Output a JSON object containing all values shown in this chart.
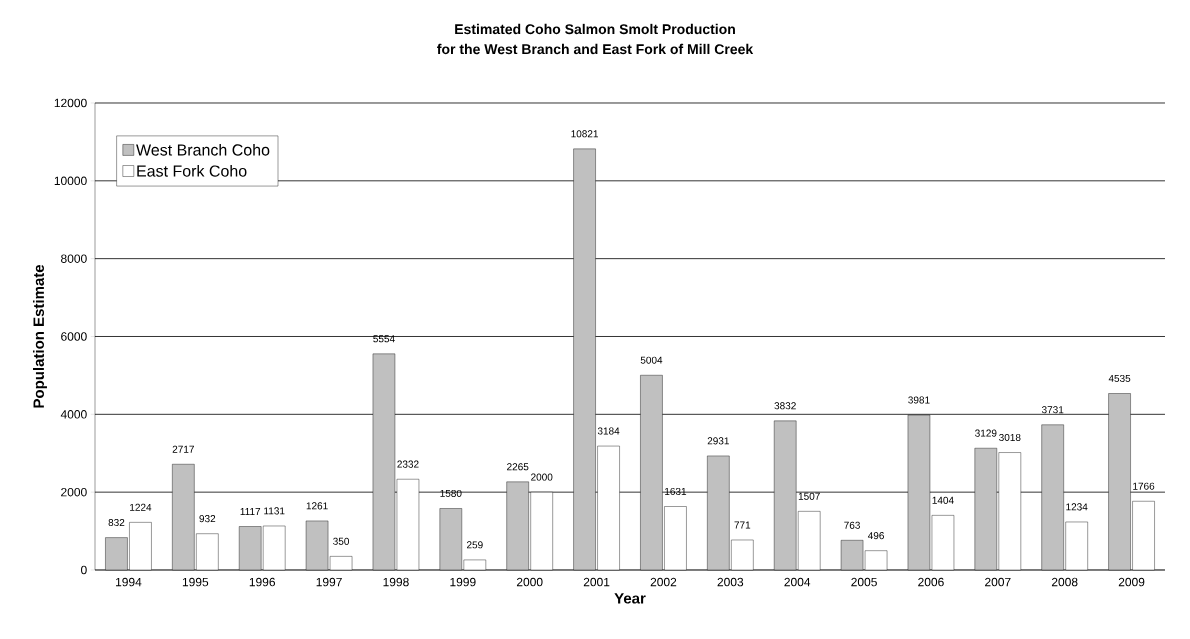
{
  "chart_data": {
    "type": "bar",
    "title": "Estimated Coho Salmon Smolt Production",
    "subtitle": "for the West Branch and East Fork of Mill Creek",
    "xlabel": "Year",
    "ylabel": "Population Estimate",
    "categories": [
      "1994",
      "1995",
      "1996",
      "1997",
      "1998",
      "1999",
      "2000",
      "2001",
      "2002",
      "2003",
      "2004",
      "2005",
      "2006",
      "2007",
      "2008",
      "2009"
    ],
    "series": [
      {
        "name": "West Branch Coho",
        "color": "#c0c0c0",
        "values": [
          832,
          2717,
          1117,
          1261,
          5554,
          1580,
          2265,
          10821,
          5004,
          2931,
          3832,
          763,
          3981,
          3129,
          3731,
          4535
        ]
      },
      {
        "name": "East Fork Coho",
        "color": "#ffffff",
        "values": [
          1224,
          932,
          1131,
          350,
          2332,
          259,
          2000,
          3184,
          1631,
          771,
          1507,
          496,
          1404,
          3018,
          1234,
          1766
        ]
      }
    ],
    "ylim": [
      0,
      12000
    ],
    "yticks": [
      0,
      2000,
      4000,
      6000,
      8000,
      10000,
      12000
    ],
    "grid": "y",
    "legend": "top left",
    "data_labels": true
  }
}
